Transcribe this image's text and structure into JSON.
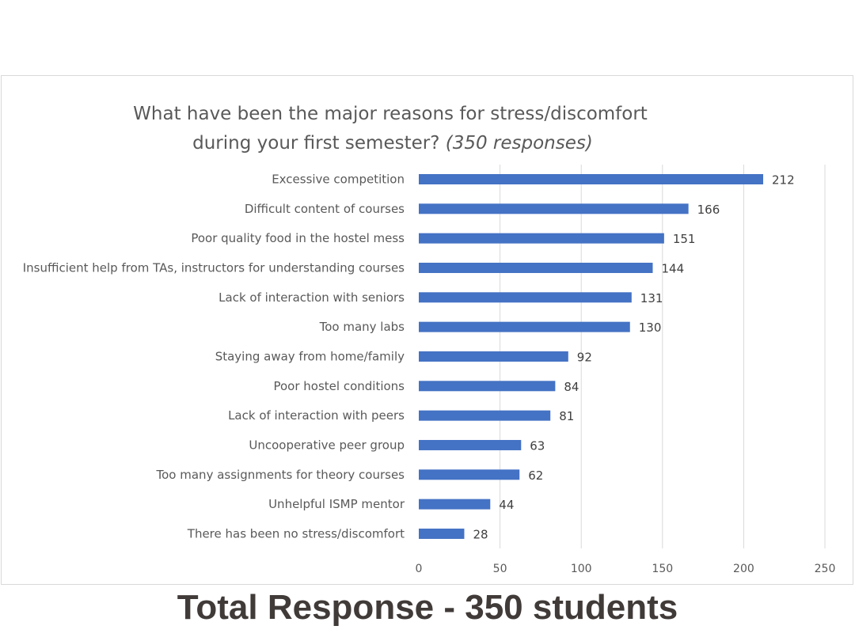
{
  "chart_data": {
    "type": "bar",
    "orientation": "horizontal",
    "title_lines": [
      "What have been the major reasons for stress/discomfort",
      "during your first  semester?"
    ],
    "title_note": "(350 responses)",
    "categories": [
      "Excessive competition",
      "Difficult content of courses",
      "Poor quality food in the hostel mess",
      "Insufficient help from TAs, instructors for understanding courses",
      "Lack of interaction with seniors",
      "Too many labs",
      "Staying away from home/family",
      "Poor hostel conditions",
      "Lack of interaction with peers",
      "Uncooperative peer group",
      "Too many assignments for theory courses",
      "Unhelpful ISMP mentor",
      "There has been no stress/discomfort"
    ],
    "values": [
      212,
      166,
      151,
      144,
      131,
      130,
      92,
      84,
      81,
      63,
      62,
      44,
      28
    ],
    "x_ticks": [
      0,
      50,
      100,
      150,
      200,
      250
    ],
    "xlim": [
      0,
      250
    ],
    "grid": "vertical",
    "bar_color": "#4472c4",
    "data_labels": true
  },
  "caption": "Total Response - 350 students"
}
